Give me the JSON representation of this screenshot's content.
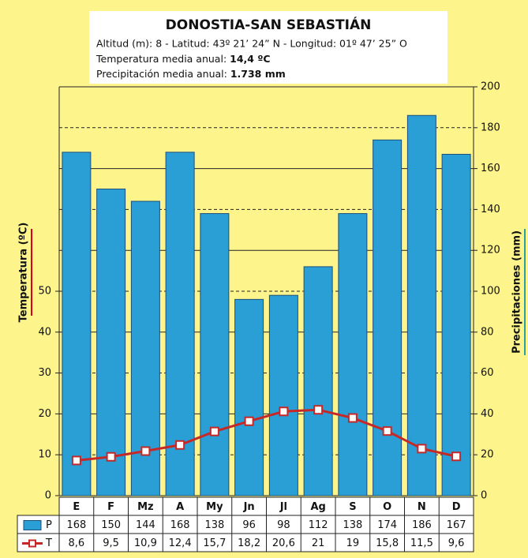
{
  "chart_data": {
    "type": "bar",
    "title": "DONOSTIA-SAN SEBASTIÁN",
    "info": {
      "location": "Altitud (m): 8 - Latitud: 43º 21’ 24” N - Longitud: 01º 47’ 25” O",
      "temp_label": "Temperatura media anual:",
      "temp_value": "14,4 ºC",
      "prec_label": "Precipitación media anual:",
      "prec_value": "1.738 mm"
    },
    "ylabel": "Temperatura (ºC)",
    "y2label": "Precipitaciones (mm)",
    "categories": [
      "E",
      "F",
      "Mz",
      "A",
      "My",
      "Jn",
      "Jl",
      "Ag",
      "S",
      "O",
      "N",
      "D"
    ],
    "series": [
      {
        "name": "P",
        "type": "bar",
        "axis": "y2",
        "color": "#2a9fd6",
        "values": [
          168,
          150,
          144,
          168,
          138,
          96,
          98,
          112,
          138,
          174,
          186,
          167
        ]
      },
      {
        "name": "T",
        "type": "line",
        "color": "#c62828",
        "values": [
          8.6,
          9.5,
          10.9,
          12.4,
          15.7,
          18.2,
          20.6,
          21,
          19,
          15.8,
          11.5,
          9.6
        ],
        "value_labels": [
          "8,6",
          "9,5",
          "10,9",
          "12,4",
          "15,7",
          "18,2",
          "20,6",
          "21",
          "19",
          "15,8",
          "11,5",
          "9,6"
        ]
      }
    ],
    "ylim": [
      0,
      100
    ],
    "yticks": [
      0,
      10,
      20,
      30,
      40,
      50
    ],
    "y2lim": [
      0,
      200
    ],
    "y2ticks": [
      0,
      20,
      40,
      60,
      80,
      100,
      120,
      140,
      160,
      180,
      200
    ],
    "grid": true
  }
}
